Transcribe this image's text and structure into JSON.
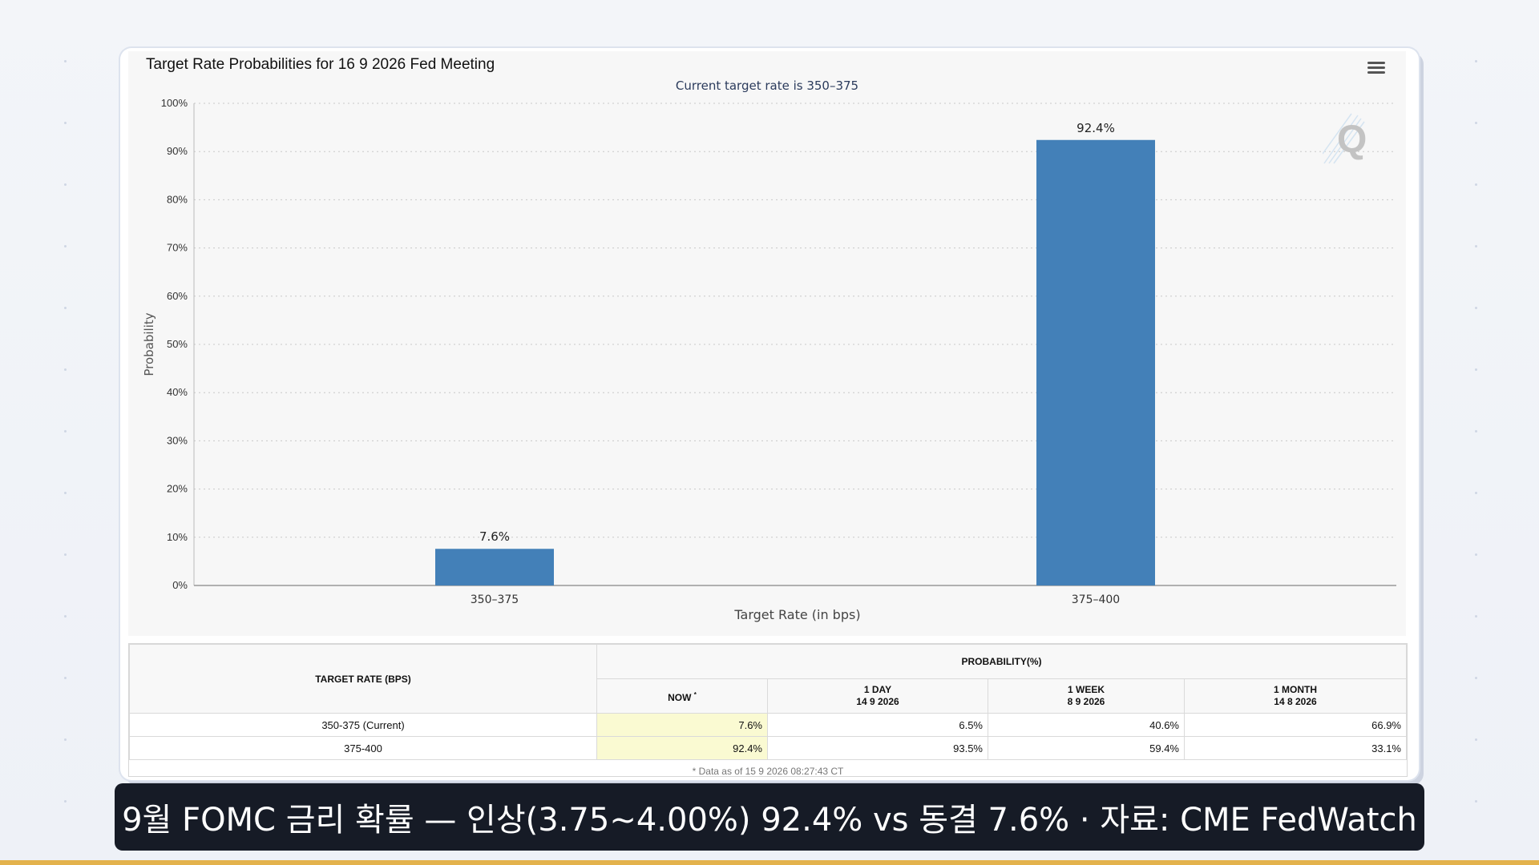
{
  "chart_data": {
    "type": "bar",
    "title": "Target Rate Probabilities for 16 9 2026 Fed Meeting",
    "subtitle": "Current target rate is 350–375",
    "xlabel": "Target Rate (in bps)",
    "ylabel": "Probability",
    "categories": [
      "350–375",
      "375–400"
    ],
    "values": [
      7.6,
      92.4
    ],
    "data_labels": [
      "7.6%",
      "92.4%"
    ],
    "ylim": [
      0,
      100
    ],
    "yticks": [
      "0%",
      "10%",
      "20%",
      "30%",
      "40%",
      "50%",
      "60%",
      "70%",
      "80%",
      "90%",
      "100%"
    ],
    "grid": true,
    "bar_color": "#4380b8"
  },
  "table": {
    "rate_header": "TARGET RATE (BPS)",
    "prob_header": "PROBABILITY(%)",
    "now_header": "NOW",
    "now_marker": "*",
    "col_day": {
      "label": "1 DAY",
      "date": "14 9 2026"
    },
    "col_week": {
      "label": "1 WEEK",
      "date": "8 9 2026"
    },
    "col_month": {
      "label": "1 MONTH",
      "date": "14 8 2026"
    },
    "rows": [
      {
        "rate": "350-375 (Current)",
        "now": "7.6%",
        "day": "6.5%",
        "week": "40.6%",
        "month": "66.9%"
      },
      {
        "rate": "375-400",
        "now": "92.4%",
        "day": "93.5%",
        "week": "59.4%",
        "month": "33.1%"
      }
    ],
    "note": "* Data as of 15 9 2026 08:27:43 CT"
  },
  "caption": "9월 FOMC 금리 확률 — 인상(3.75~4.00%) 92.4% vs 동결 7.6% · 자료: CME FedWatch",
  "logo_letter": "Q"
}
